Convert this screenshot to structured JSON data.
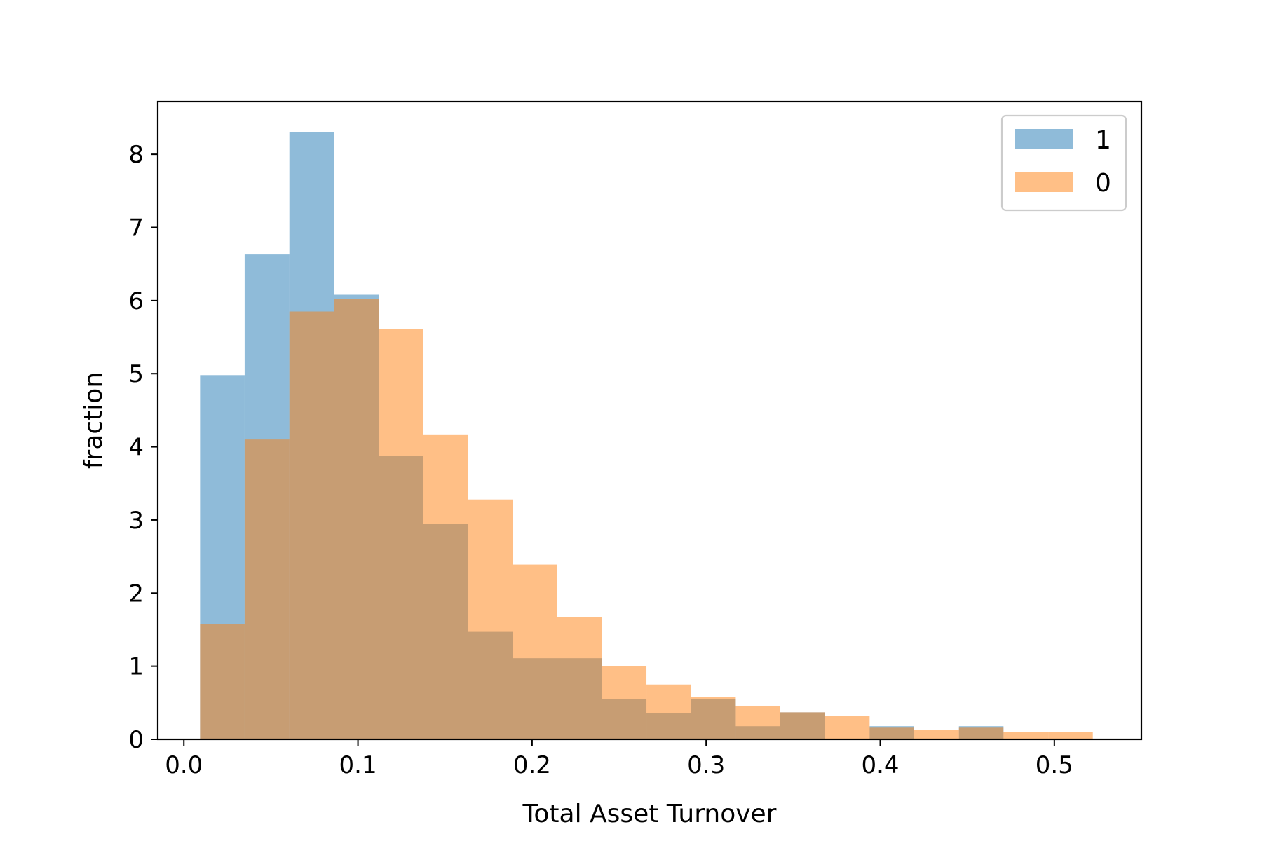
{
  "chart_data": {
    "type": "bar",
    "subtype": "overlapping-histogram",
    "xlabel": "Total Asset Turnover",
    "ylabel": "fraction",
    "xlim": [
      -0.015,
      0.55
    ],
    "ylim": [
      0,
      8.72
    ],
    "x_ticks": [
      {
        "value": 0.0,
        "label": "0.0"
      },
      {
        "value": 0.1,
        "label": "0.1"
      },
      {
        "value": 0.2,
        "label": "0.2"
      },
      {
        "value": 0.3,
        "label": "0.3"
      },
      {
        "value": 0.4,
        "label": "0.4"
      },
      {
        "value": 0.5,
        "label": "0.5"
      }
    ],
    "y_ticks": [
      {
        "value": 0,
        "label": "0"
      },
      {
        "value": 1,
        "label": "1"
      },
      {
        "value": 2,
        "label": "2"
      },
      {
        "value": 3,
        "label": "3"
      },
      {
        "value": 4,
        "label": "4"
      },
      {
        "value": 5,
        "label": "5"
      },
      {
        "value": 6,
        "label": "6"
      },
      {
        "value": 7,
        "label": "7"
      },
      {
        "value": 8,
        "label": "8"
      }
    ],
    "grid": false,
    "legend_position": "top-right",
    "bin_edges": [
      0.0093,
      0.0349,
      0.0606,
      0.0862,
      0.1119,
      0.1375,
      0.1631,
      0.1888,
      0.2144,
      0.2401,
      0.2657,
      0.2913,
      0.317,
      0.3426,
      0.3683,
      0.3939,
      0.4195,
      0.4452,
      0.4708,
      0.4965,
      0.5221
    ],
    "series": [
      {
        "name": "1",
        "color": "#1f77b4",
        "opacity": 0.5,
        "values": [
          4.98,
          6.63,
          8.3,
          6.08,
          3.88,
          2.95,
          1.47,
          1.11,
          1.11,
          0.55,
          0.36,
          0.55,
          0.18,
          0.37,
          0.0,
          0.18,
          0.0,
          0.18,
          0.0,
          0.0
        ]
      },
      {
        "name": "0",
        "color": "#ff7f0e",
        "opacity": 0.5,
        "values": [
          1.58,
          4.1,
          5.85,
          6.02,
          5.61,
          4.17,
          3.28,
          2.39,
          1.67,
          1.0,
          0.75,
          0.58,
          0.46,
          0.37,
          0.32,
          0.16,
          0.13,
          0.16,
          0.1,
          0.1
        ]
      }
    ]
  }
}
